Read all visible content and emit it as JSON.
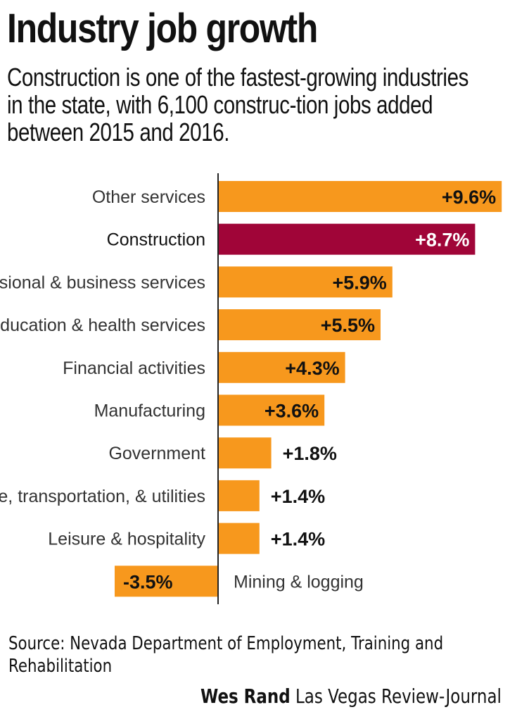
{
  "header": {
    "title": "Industry job growth",
    "subtitle": "Construction is one of the fastest-growing industries in the state, with 6,100 construc-tion jobs added between 2015 and 2016."
  },
  "footer": {
    "source": "Source: Nevada Department of Employment, Training and Rehabilitation",
    "credit_name": "Wes Rand",
    "credit_org": "Las Vegas Review-Journal"
  },
  "colors": {
    "bar": "#f7981d",
    "highlight": "#a00538",
    "axis": "#222222",
    "text": "#111111"
  },
  "chart_data": {
    "type": "bar",
    "orientation": "horizontal",
    "categories": [
      "Other services",
      "Construction",
      "Professional & business services",
      "Education & health services",
      "Financial activities",
      "Manufacturing",
      "Government",
      "Trade, transportation, & utilities",
      "Leisure & hospitality",
      "Mining & logging"
    ],
    "values": [
      9.6,
      8.7,
      5.9,
      5.5,
      4.3,
      3.6,
      1.8,
      1.4,
      1.4,
      -3.5
    ],
    "value_labels": [
      "+9.6%",
      "+8.7%",
      "+5.9%",
      "+5.5%",
      "+4.3%",
      "+3.6%",
      "+1.8%",
      "+1.4%",
      "+1.4%",
      "-3.5%"
    ],
    "highlight": "Construction",
    "xlim": [
      -3.5,
      9.6
    ],
    "grid": false
  }
}
